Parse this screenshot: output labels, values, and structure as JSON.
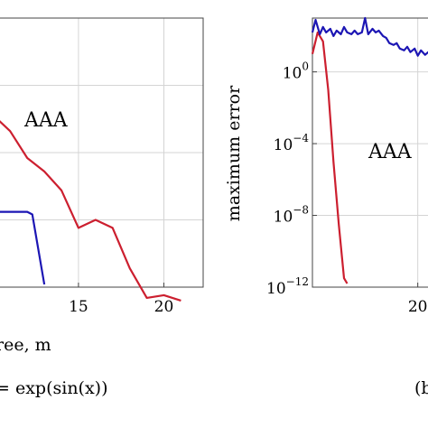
{
  "chart_data": [
    {
      "type": "line",
      "xlabel": "ree, m",
      "ylabel": "",
      "xlim": [
        10.3,
        22.3
      ],
      "x_ticks": [
        {
          "value": 15,
          "label": "15"
        },
        {
          "value": 20,
          "label": "20"
        }
      ],
      "annotation": "AAA",
      "caption": "= exp(sin(x))",
      "series": [
        {
          "color": "#cc1f2f",
          "points": [
            [
              10,
              0.64
            ],
            [
              11,
              0.58
            ],
            [
              12,
              0.48
            ],
            [
              13,
              0.43
            ],
            [
              14,
              0.36
            ],
            [
              15,
              0.22
            ],
            [
              16,
              0.25
            ],
            [
              17,
              0.22
            ],
            [
              18,
              0.07
            ],
            [
              19,
              -0.04
            ],
            [
              20,
              -0.03
            ],
            [
              21,
              -0.05
            ]
          ]
        },
        {
          "color": "#1c16b4",
          "points": [
            [
              10,
              0.28
            ],
            [
              11,
              0.28
            ],
            [
              12,
              0.28
            ],
            [
              12.3,
              0.27
            ],
            [
              13,
              0.01
            ]
          ]
        }
      ]
    },
    {
      "type": "line",
      "xlabel": "",
      "ylabel": "maximum error",
      "yscale": "log",
      "ylim_exp": [
        -12,
        3.0
      ],
      "xlim": [
        0,
        12
      ],
      "y_ticks": [
        {
          "exp": 0,
          "label_base": "10",
          "label_exp": "0"
        },
        {
          "exp": -4,
          "label_base": "10",
          "label_exp": "−4"
        },
        {
          "exp": -8,
          "label_base": "10",
          "label_exp": "−8"
        },
        {
          "exp": -12,
          "label_base": "10",
          "label_exp": "−12"
        }
      ],
      "x_ticks": [
        {
          "value": 10,
          "label": "20"
        }
      ],
      "annotation": "AAA",
      "caption": "(b",
      "series": [
        {
          "color": "#cc1f2f",
          "points": [
            [
              0,
              1.0
            ],
            [
              0.5,
              2.2
            ],
            [
              1,
              1.7
            ],
            [
              1.5,
              -1.0
            ],
            [
              2,
              -5.0
            ],
            [
              2.5,
              -8.5
            ],
            [
              3,
              -11.5
            ],
            [
              3.3,
              -11.8
            ]
          ]
        },
        {
          "color": "#1c16b4",
          "points": [
            [
              0,
              2.2
            ],
            [
              0.3,
              2.9
            ],
            [
              0.7,
              2.1
            ],
            [
              1,
              2.5
            ],
            [
              1.3,
              2.2
            ],
            [
              1.7,
              2.4
            ],
            [
              2,
              2.0
            ],
            [
              2.3,
              2.3
            ],
            [
              2.7,
              2.1
            ],
            [
              3,
              2.5
            ],
            [
              3.3,
              2.2
            ],
            [
              3.7,
              2.1
            ],
            [
              4,
              2.3
            ],
            [
              4.3,
              2.1
            ],
            [
              4.7,
              2.2
            ],
            [
              5,
              3.0
            ],
            [
              5.3,
              2.1
            ],
            [
              5.7,
              2.4
            ],
            [
              6,
              2.2
            ],
            [
              6.3,
              2.3
            ],
            [
              6.7,
              2.0
            ],
            [
              7,
              1.9
            ],
            [
              7.3,
              1.6
            ],
            [
              7.7,
              1.5
            ],
            [
              8,
              1.6
            ],
            [
              8.3,
              1.3
            ],
            [
              8.7,
              1.2
            ],
            [
              9,
              1.4
            ],
            [
              9.3,
              1.1
            ],
            [
              9.7,
              1.3
            ],
            [
              10,
              0.9
            ],
            [
              10.3,
              1.2
            ],
            [
              10.7,
              0.95
            ],
            [
              11,
              1.1
            ],
            [
              11.3,
              0.9
            ],
            [
              12,
              0.95
            ]
          ]
        }
      ]
    }
  ]
}
